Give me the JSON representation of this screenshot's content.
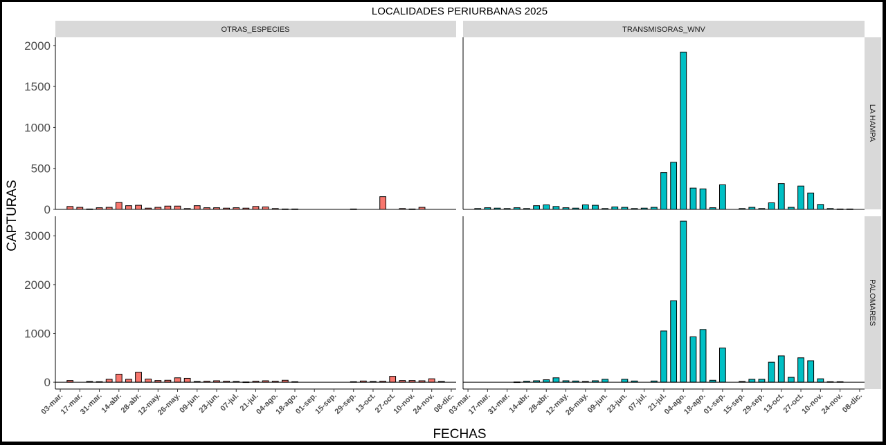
{
  "chart_data": {
    "type": "bar",
    "title": "LOCALIDADES PERIURBANAS 2025",
    "xlabel": "FECHAS",
    "ylabel": "CAPTURAS",
    "facets_columns": [
      "OTRAS_ESPECIES",
      "TRANSMISORAS_WNV"
    ],
    "facets_rows": [
      "LA HAMPA",
      "PALOMARES"
    ],
    "x_tick_labels": [
      "03-mar.",
      "17-mar.",
      "31-mar.",
      "14-abr.",
      "28-abr.",
      "12-may.",
      "26-may.",
      "09-jun.",
      "23-jun.",
      "07-jul.",
      "21-jul.",
      "04-ago.",
      "18-ago.",
      "01-sep.",
      "15-sep.",
      "29-sep.",
      "13-oct.",
      "27-oct.",
      "10-nov.",
      "24-nov.",
      "08-dic."
    ],
    "x_dates": [
      "03-mar.",
      "10-mar.",
      "17-mar.",
      "24-mar.",
      "31-mar.",
      "07-abr.",
      "14-abr.",
      "21-abr.",
      "28-abr.",
      "05-may.",
      "12-may.",
      "19-may.",
      "26-may.",
      "02-jun.",
      "09-jun.",
      "16-jun.",
      "23-jun.",
      "30-jun.",
      "07-jul.",
      "14-jul.",
      "21-jul.",
      "28-jul.",
      "04-ago.",
      "11-ago.",
      "18-ago.",
      "25-ago.",
      "01-sep.",
      "08-sep.",
      "15-sep.",
      "22-sep.",
      "29-sep.",
      "06-oct.",
      "13-oct.",
      "20-oct.",
      "27-oct.",
      "03-nov.",
      "10-nov.",
      "17-nov.",
      "24-nov.",
      "01-dic.",
      "08-dic."
    ],
    "fill_colors": {
      "OTRAS_ESPECIES": "#f8766d",
      "TRANSMISORAS_WNV": "#00bfc4"
    },
    "panels": [
      {
        "row": "LA HAMPA",
        "ylim": [
          0,
          2100
        ],
        "yticks": [
          0,
          500,
          1000,
          1500,
          2000
        ],
        "series": [
          {
            "name": "OTRAS_ESPECIES",
            "values": [
              0,
              35,
              25,
              5,
              20,
              25,
              85,
              45,
              50,
              15,
              25,
              40,
              40,
              10,
              45,
              20,
              20,
              15,
              20,
              15,
              35,
              30,
              10,
              5,
              5,
              0,
              0,
              0,
              0,
              0,
              5,
              0,
              0,
              155,
              0,
              10,
              5,
              25,
              0,
              0,
              0
            ]
          },
          {
            "name": "TRANSMISORAS_WNV",
            "values": [
              0,
              10,
              20,
              15,
              10,
              20,
              10,
              45,
              55,
              35,
              20,
              15,
              55,
              50,
              10,
              30,
              25,
              10,
              15,
              25,
              450,
              575,
              1920,
              260,
              250,
              20,
              300,
              0,
              10,
              25,
              10,
              80,
              315,
              25,
              285,
              200,
              60,
              10,
              5,
              5,
              0
            ]
          }
        ]
      },
      {
        "row": "PALOMARES",
        "ylim": [
          -140,
          3400
        ],
        "yticks": [
          0,
          1000,
          2000,
          3000
        ],
        "series": [
          {
            "name": "OTRAS_ESPECIES",
            "values": [
              0,
              35,
              0,
              15,
              10,
              60,
              165,
              60,
              205,
              65,
              35,
              40,
              90,
              80,
              15,
              20,
              30,
              20,
              15,
              5,
              20,
              30,
              20,
              40,
              10,
              0,
              0,
              0,
              0,
              0,
              10,
              25,
              15,
              20,
              120,
              35,
              35,
              30,
              70,
              15,
              0
            ]
          },
          {
            "name": "TRANSMISORAS_WNV",
            "values": [
              0,
              0,
              0,
              0,
              0,
              5,
              20,
              30,
              50,
              90,
              30,
              25,
              15,
              30,
              60,
              0,
              60,
              25,
              0,
              25,
              1050,
              1670,
              3300,
              930,
              1080,
              40,
              700,
              0,
              15,
              60,
              60,
              410,
              540,
              100,
              500,
              440,
              70,
              10,
              10,
              0,
              0
            ]
          }
        ]
      }
    ]
  }
}
